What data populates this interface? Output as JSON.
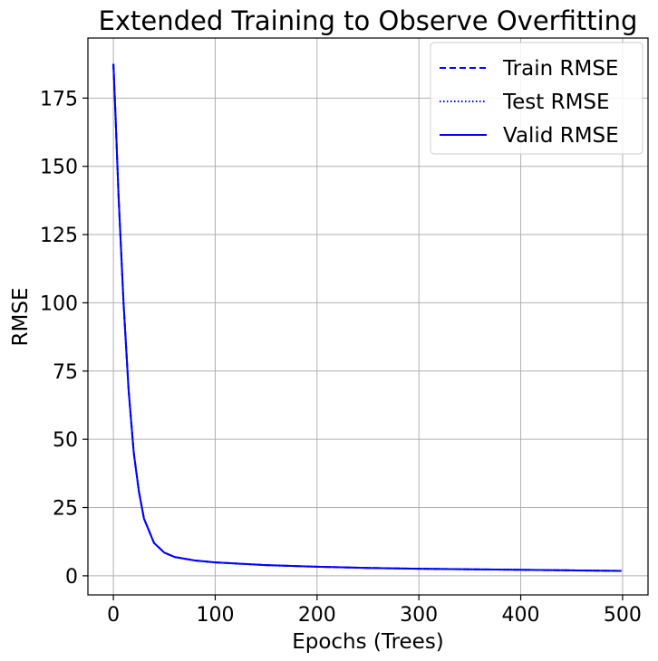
{
  "chart_data": {
    "type": "line",
    "title": "Extended Training to Observe Overfitting",
    "xlabel": "Epochs (Trees)",
    "ylabel": "RMSE",
    "xlim": [
      -25,
      525
    ],
    "ylim": [
      -7,
      197
    ],
    "x_ticks": [
      0,
      100,
      200,
      300,
      400,
      500
    ],
    "y_ticks": [
      0,
      25,
      50,
      75,
      100,
      125,
      150,
      175
    ],
    "grid": true,
    "legend_position": "top-right",
    "series": [
      {
        "name": "Train RMSE",
        "line_style": "dashed",
        "color": "#0000ff",
        "x": [
          0,
          2,
          5,
          10,
          15,
          20,
          25,
          30,
          40,
          50,
          60,
          80,
          100,
          150,
          200,
          250,
          300,
          350,
          400,
          450,
          499
        ],
        "y": [
          187.5,
          170,
          140,
          100,
          68,
          45,
          31,
          21,
          12,
          8.5,
          6.9,
          5.6,
          4.9,
          3.9,
          3.3,
          2.9,
          2.6,
          2.4,
          2.2,
          2.0,
          1.8
        ]
      },
      {
        "name": "Test RMSE",
        "line_style": "dotted",
        "color": "#0000ff",
        "x": [
          0,
          2,
          5,
          10,
          15,
          20,
          25,
          30,
          40,
          50,
          60,
          80,
          100,
          150,
          200,
          250,
          300,
          350,
          400,
          450,
          499
        ],
        "y": [
          187.5,
          170,
          140,
          100,
          68,
          45,
          31,
          21,
          12,
          8.5,
          6.9,
          5.6,
          4.9,
          3.9,
          3.3,
          2.9,
          2.6,
          2.4,
          2.2,
          2.0,
          1.8
        ]
      },
      {
        "name": "Valid RMSE",
        "line_style": "solid",
        "color": "#0000ff",
        "x": [
          0,
          2,
          5,
          10,
          15,
          20,
          25,
          30,
          40,
          50,
          60,
          80,
          100,
          150,
          200,
          250,
          300,
          350,
          400,
          450,
          499
        ],
        "y": [
          187.5,
          170,
          140,
          100,
          68,
          45,
          31,
          21,
          12,
          8.5,
          6.9,
          5.6,
          4.9,
          3.9,
          3.3,
          2.9,
          2.6,
          2.4,
          2.2,
          2.0,
          1.8
        ]
      }
    ]
  }
}
